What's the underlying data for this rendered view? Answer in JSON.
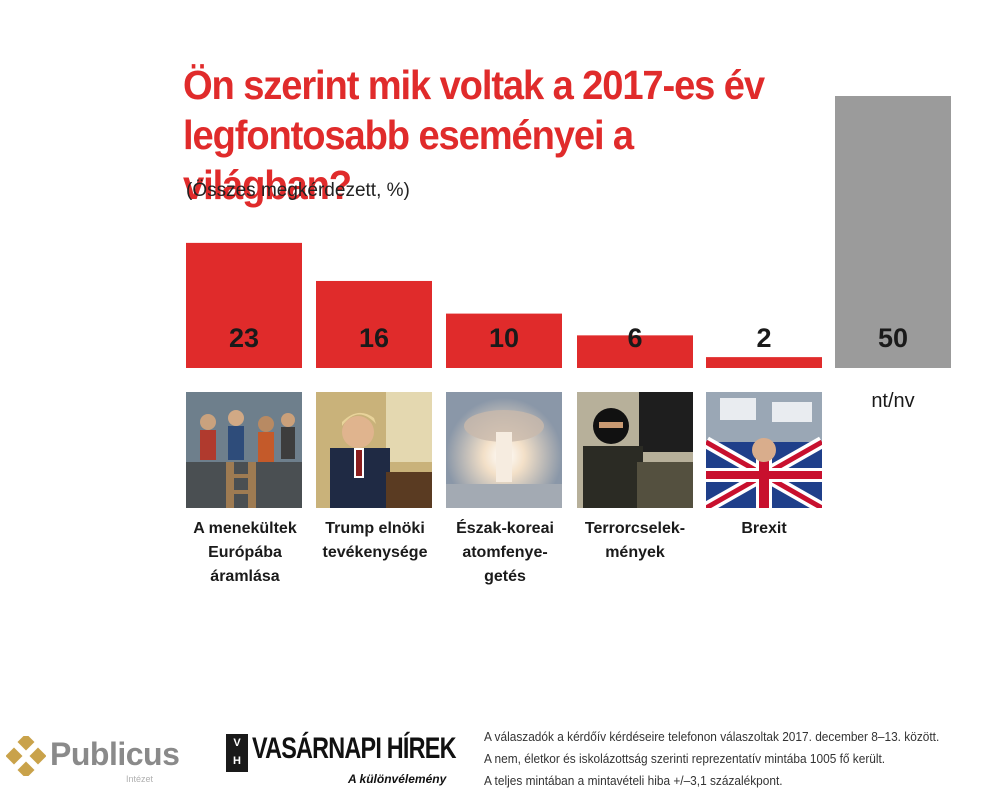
{
  "title_lines": [
    "Ön szerint mik voltak a 2017-es év",
    "legfontosabb eseményei a világban?"
  ],
  "subtitle": "(Összes megkérdezett, %)",
  "colors": {
    "accent": "#e02b2b",
    "nv_bar": "#9b9b9b",
    "title": "#e02b2b"
  },
  "chart_data": {
    "type": "bar",
    "title": "Ön szerint mik voltak a 2017-es év legfontosabb eseményei a világban?",
    "subtitle": "(Összes megkérdezett, %)",
    "categories": [
      "A menekültek\nEurópába\náramlása",
      "Trump elnöki\ntevékenysége",
      "Észak-koreai\natomfenye-\ngetés",
      "Terrorcselek-\nmények",
      "Brexit",
      "nt/nv"
    ],
    "values": [
      23,
      16,
      10,
      6,
      2,
      50
    ],
    "value_labels": [
      "23",
      "16",
      "10",
      "6",
      "2",
      "50"
    ],
    "bar_colors": [
      "#e02b2b",
      "#e02b2b",
      "#e02b2b",
      "#e02b2b",
      "#e02b2b",
      "#9b9b9b"
    ],
    "ylim": [
      0,
      50
    ],
    "grid": false,
    "legend": "none"
  },
  "photos": [
    {
      "icon": "refugees-photo"
    },
    {
      "icon": "trump-photo"
    },
    {
      "icon": "nuclear-test-photo"
    },
    {
      "icon": "terrorist-photo"
    },
    {
      "icon": "brexit-protest-photo"
    }
  ],
  "footer": {
    "publicus": "Publicus",
    "publicus_sub": "Intézet",
    "vh_box": "V\nH",
    "vh_name": "VASÁRNAPI HÍREK",
    "vh_sub": "A különvélemény",
    "notes": [
      "A válaszadók a kérdőív kérdéseire telefonon válaszoltak 2017. december 8–13. között.",
      "A nem, életkor és iskolázottság szerinti reprezentatív mintába 1005 fő került.",
      "A teljes mintában a mintavételi hiba +/–3,1 százalékpont."
    ]
  }
}
